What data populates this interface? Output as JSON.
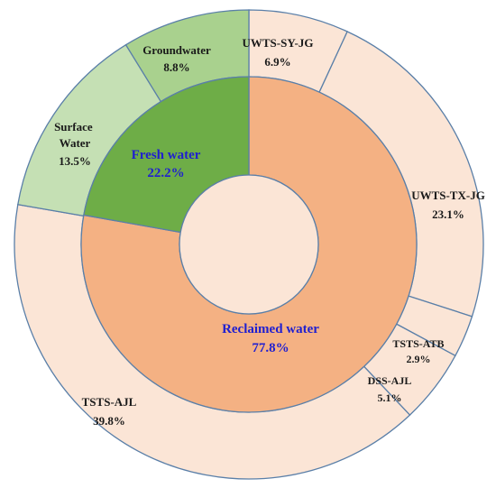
{
  "chart_data": {
    "type": "pie",
    "subtype": "nested-donut",
    "inner_ring": [
      {
        "label": "Fresh water",
        "value": 22.2,
        "value_label": "22.2%",
        "color": "#6ead47"
      },
      {
        "label": "Reclaimed water",
        "value": 77.8,
        "value_label": "77.8%",
        "color": "#f4b183"
      }
    ],
    "outer_ring": [
      {
        "label": "UWTS-SY-JG",
        "value": 6.9,
        "value_label": "6.9%",
        "color": "#fbe5d6"
      },
      {
        "label": "UWTS-TX-JG",
        "value": 23.1,
        "value_label": "23.1%",
        "color": "#fbe5d6"
      },
      {
        "label": "TSTS-ATB",
        "value": 2.9,
        "value_label": "2.9%",
        "color": "#fbe5d6"
      },
      {
        "label": "DSS-AJL",
        "value": 5.1,
        "value_label": "5.1%",
        "color": "#fbe5d6"
      },
      {
        "label": "TSTS-AJL",
        "value": 39.8,
        "value_label": "39.8%",
        "color": "#fbe5d6"
      },
      {
        "label": "Surface Water",
        "value": 13.5,
        "value_label": "13.5%",
        "color": "#c5e0b4"
      },
      {
        "label": "Groundwater",
        "value": 8.8,
        "value_label": "8.8%",
        "color": "#a9d18e"
      }
    ],
    "center_color": "#fbe5d6",
    "title": "",
    "legend": "none"
  }
}
